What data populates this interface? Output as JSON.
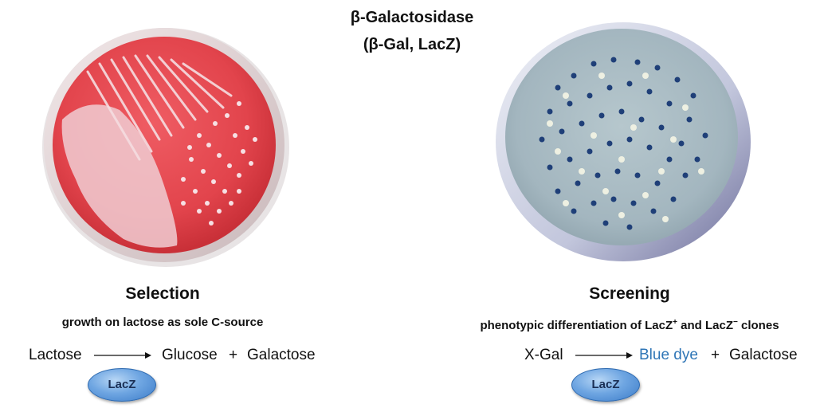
{
  "title": {
    "line1": "β-Galactosidase",
    "line2": "(β-Gal, LacZ)"
  },
  "selection": {
    "heading": "Selection",
    "subtitle": "growth on lactose as sole C-source",
    "equation": {
      "substrate": "Lactose",
      "product1": "Glucose",
      "plus": "+",
      "product2": "Galactose"
    },
    "enzyme": "LacZ",
    "plate_colors": {
      "agar": "#e5464f",
      "colonies": "#f3d6dc"
    }
  },
  "screening": {
    "heading": "Screening",
    "subtitle_prefix": "phenotypic differentiation of LacZ",
    "superscript_plus": "+",
    "subtitle_and": " and LacZ",
    "superscript_minus": "−",
    "subtitle_suffix": " clones",
    "equation": {
      "substrate": "X-Gal",
      "product1": "Blue dye",
      "plus": "+",
      "product2": "Galactose"
    },
    "enzyme": "LacZ",
    "plate_colors": {
      "agar": "#a9bcc4",
      "blue_colonies": "#1f3f78",
      "white_colonies": "#eef0e2"
    }
  },
  "colors": {
    "blue_dye_text": "#2e75b6",
    "enzyme_fill": "#6fa6e2"
  }
}
